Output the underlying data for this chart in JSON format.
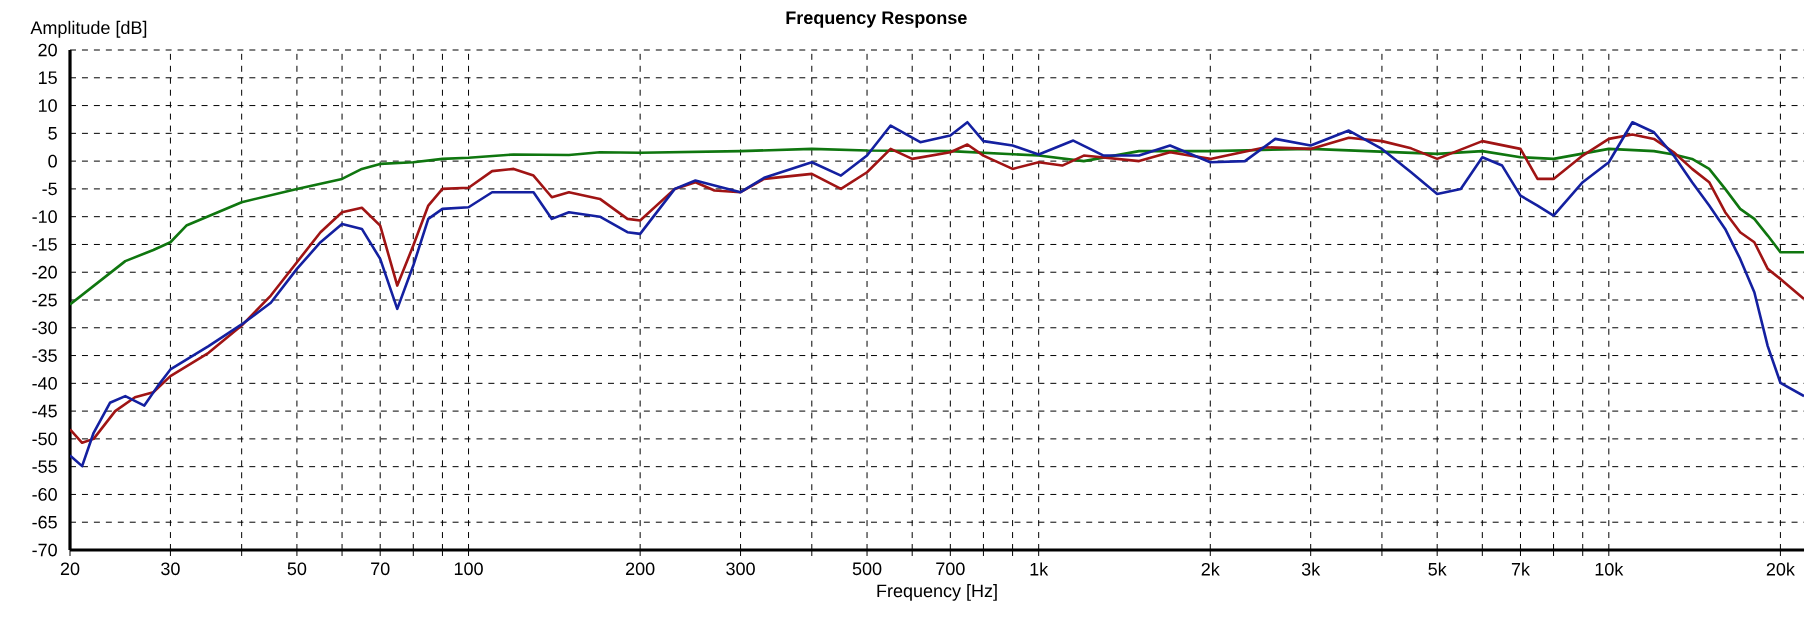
{
  "chart_data": {
    "type": "line",
    "title": "Frequency Response",
    "xlabel": "Frequency [Hz]",
    "ylabel": "Amplitude [dB]",
    "log": "x",
    "grid": true,
    "xlim": [
      20,
      22000
    ],
    "ylim": [
      -70,
      20
    ],
    "xticks": [
      20,
      30,
      {
        "value": 40,
        "label": null
      },
      50,
      {
        "value": 60,
        "label": null
      },
      70,
      {
        "value": 80,
        "label": null
      },
      {
        "value": 90,
        "label": null
      },
      100,
      200,
      300,
      {
        "value": 400,
        "label": null
      },
      500,
      {
        "value": 600,
        "label": null
      },
      700,
      {
        "value": 800,
        "label": null
      },
      {
        "value": 900,
        "label": null
      },
      {
        "value": 1000,
        "label": "1k"
      },
      {
        "value": 2000,
        "label": "2k"
      },
      {
        "value": 3000,
        "label": "3k"
      },
      {
        "value": 4000,
        "label": null
      },
      {
        "value": 5000,
        "label": "5k"
      },
      {
        "value": 6000,
        "label": null
      },
      {
        "value": 7000,
        "label": "7k"
      },
      {
        "value": 8000,
        "label": null
      },
      {
        "value": 9000,
        "label": null
      },
      {
        "value": 10000,
        "label": "10k"
      },
      {
        "value": 20000,
        "label": "20k"
      }
    ],
    "yticks": [
      20,
      15,
      10,
      5,
      0,
      -5,
      -10,
      -15,
      -20,
      -25,
      -30,
      -35,
      -40,
      -45,
      -50,
      -55,
      -60,
      -65,
      -70
    ],
    "series": [
      {
        "color": "#0f760f",
        "x": [
          20,
          25,
          28,
          30,
          32,
          40,
          50,
          60,
          65,
          70,
          80,
          90,
          100,
          120,
          150,
          170,
          200,
          300,
          400,
          500,
          700,
          1000,
          1200,
          1500,
          2000,
          3000,
          5000,
          6000,
          7000,
          8000,
          10000,
          12000,
          13000,
          14000,
          15000,
          16000,
          17000,
          18000,
          19000,
          20000,
          22000
        ],
        "values": [
          -25.8,
          -18,
          -16,
          -14.6,
          -11.6,
          -7.4,
          -5,
          -3.2,
          -1.4,
          -0.5,
          -0.2,
          0.4,
          0.6,
          1.2,
          1.1,
          1.6,
          1.5,
          1.8,
          2.2,
          1.9,
          1.8,
          1,
          0,
          1.8,
          1.8,
          2.2,
          1.3,
          1.8,
          0.7,
          0.4,
          2.2,
          1.8,
          1.2,
          0.4,
          -1.4,
          -5,
          -8.6,
          -10.4,
          -13.4,
          -16.4,
          -16.4
        ]
      },
      {
        "color": "#a01414",
        "x": [
          20,
          21,
          22,
          24,
          26,
          28,
          30,
          35,
          40,
          45,
          50,
          55,
          60,
          65,
          70,
          75,
          80,
          85,
          90,
          100,
          110,
          120,
          130,
          140,
          150,
          170,
          190,
          200,
          230,
          250,
          270,
          300,
          330,
          400,
          450,
          500,
          550,
          600,
          700,
          750,
          800,
          900,
          1000,
          1100,
          1200,
          1500,
          1700,
          2000,
          2500,
          3000,
          3500,
          4000,
          4500,
          5000,
          6000,
          7000,
          7500,
          8000,
          9000,
          10000,
          11000,
          12000,
          13000,
          14000,
          15000,
          16000,
          17000,
          18000,
          19000,
          20000,
          22000
        ],
        "values": [
          -48.3,
          -50.7,
          -50,
          -45,
          -42.5,
          -41.6,
          -38.7,
          -34.5,
          -29.6,
          -24.2,
          -18.2,
          -12.8,
          -9.2,
          -8.4,
          -11.6,
          -22.4,
          -15.2,
          -8,
          -5,
          -4.8,
          -1.8,
          -1.4,
          -2.6,
          -6.5,
          -5.6,
          -6.8,
          -10.4,
          -10.7,
          -5,
          -3.8,
          -5.3,
          -5.6,
          -3.2,
          -2.3,
          -5,
          -2,
          2.2,
          0.4,
          1.6,
          3,
          1,
          -1.4,
          -0.2,
          -0.8,
          1,
          0,
          1.6,
          0.4,
          2.5,
          2.2,
          4.2,
          3.6,
          2.3,
          0.4,
          3.6,
          2.2,
          -3.2,
          -3.2,
          1,
          4,
          4.8,
          4,
          1.6,
          -1.4,
          -3.8,
          -9.2,
          -12.8,
          -14.6,
          -19.4,
          -21.2,
          -24.8
        ]
      },
      {
        "color": "#1420a0",
        "x": [
          20,
          21,
          22,
          23.5,
          25,
          27,
          28.5,
          30,
          35,
          40,
          45,
          50,
          55,
          60,
          65,
          70,
          75,
          80,
          85,
          90,
          100,
          110,
          130,
          140,
          150,
          170,
          190,
          200,
          230,
          250,
          270,
          300,
          330,
          400,
          450,
          500,
          550,
          620,
          700,
          750,
          800,
          900,
          1000,
          1150,
          1300,
          1500,
          1700,
          2000,
          2300,
          2600,
          3000,
          3500,
          4000,
          4500,
          5000,
          5500,
          6000,
          6500,
          7000,
          7500,
          8000,
          9000,
          10000,
          11000,
          12000,
          13000,
          14000,
          15000,
          16000,
          17000,
          18000,
          19000,
          20000,
          22000
        ],
        "values": [
          -53,
          -54.9,
          -48.9,
          -43.5,
          -42.3,
          -44,
          -40.5,
          -37.5,
          -33.3,
          -29.4,
          -25.5,
          -19.4,
          -14.6,
          -11.3,
          -12.2,
          -17.6,
          -26.6,
          -18.8,
          -10.4,
          -8.6,
          -8.3,
          -5.6,
          -5.6,
          -10.4,
          -9.2,
          -10,
          -12.8,
          -13.1,
          -5,
          -3.5,
          -4.4,
          -5.6,
          -3,
          -0.2,
          -2.6,
          1,
          6.4,
          3.4,
          4.6,
          7,
          3.6,
          2.8,
          1.2,
          3.7,
          1,
          1,
          2.8,
          -0.2,
          0,
          4,
          2.8,
          5.5,
          2.2,
          -2,
          -5.9,
          -5,
          0.7,
          -0.8,
          -6.2,
          -8,
          -9.8,
          -3.8,
          -0.2,
          7,
          5.2,
          1,
          -3.8,
          -8,
          -12.2,
          -17.6,
          -23.6,
          -33.3,
          -39.9,
          -42.3
        ]
      }
    ]
  }
}
